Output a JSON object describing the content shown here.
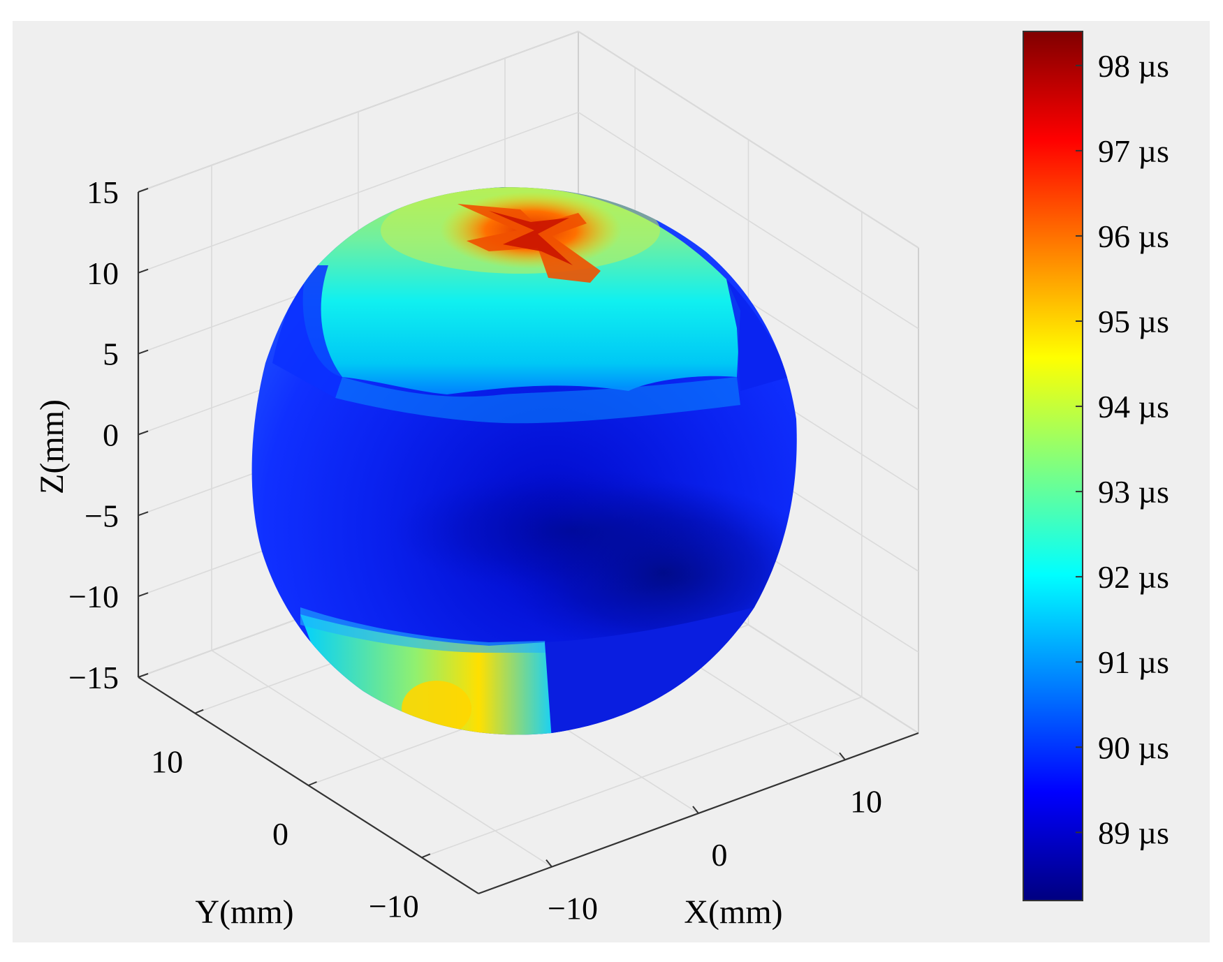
{
  "chart_data": {
    "type": "surface3d",
    "title": "",
    "xlabel": "X(mm)",
    "ylabel": "Y(mm)",
    "zlabel": "Z(mm)",
    "x_ticks": [
      -10,
      0,
      10
    ],
    "y_ticks": [
      -10,
      0,
      10
    ],
    "z_ticks": [
      -15,
      -10,
      -5,
      0,
      5,
      10,
      15
    ],
    "x_tick_labels": [
      "−10",
      "0",
      "10"
    ],
    "y_tick_labels": [
      "−10",
      "0",
      "10"
    ],
    "z_tick_labels": [
      "−15",
      "−10",
      "−5",
      "0",
      "5",
      "10",
      "15"
    ],
    "xlim": [
      -15,
      15
    ],
    "ylim": [
      -15,
      15
    ],
    "zlim": [
      -15,
      15
    ],
    "grid": true,
    "surface": {
      "shape": "sphere",
      "center": [
        0,
        0,
        0
      ],
      "radius_mm": 15,
      "description_regions": [
        {
          "region": "top pole cross-shaped hot spot",
          "value_us": 96.5
        },
        {
          "region": "upper cap",
          "value_us": 93.0
        },
        {
          "region": "upper band",
          "value_us": 91.5
        },
        {
          "region": "equator and lower hemisphere",
          "value_us": 89.3
        },
        {
          "region": "darkest lower right area",
          "value_us": 88.3
        },
        {
          "region": "bottom left spot",
          "value_us": 94.5
        }
      ]
    },
    "colorbar": {
      "colormap": "jet",
      "min": 88.2,
      "max": 98.4,
      "unit": "µs",
      "ticks": [
        98,
        97,
        96,
        95,
        94,
        93,
        92,
        91,
        90,
        89
      ],
      "tick_labels": [
        "98 µs",
        "97 µs",
        "96 µs",
        "95 µs",
        "94 µs",
        "93 µs",
        "92 µs",
        "91 µs",
        "90 µs",
        "89 µs"
      ]
    }
  }
}
